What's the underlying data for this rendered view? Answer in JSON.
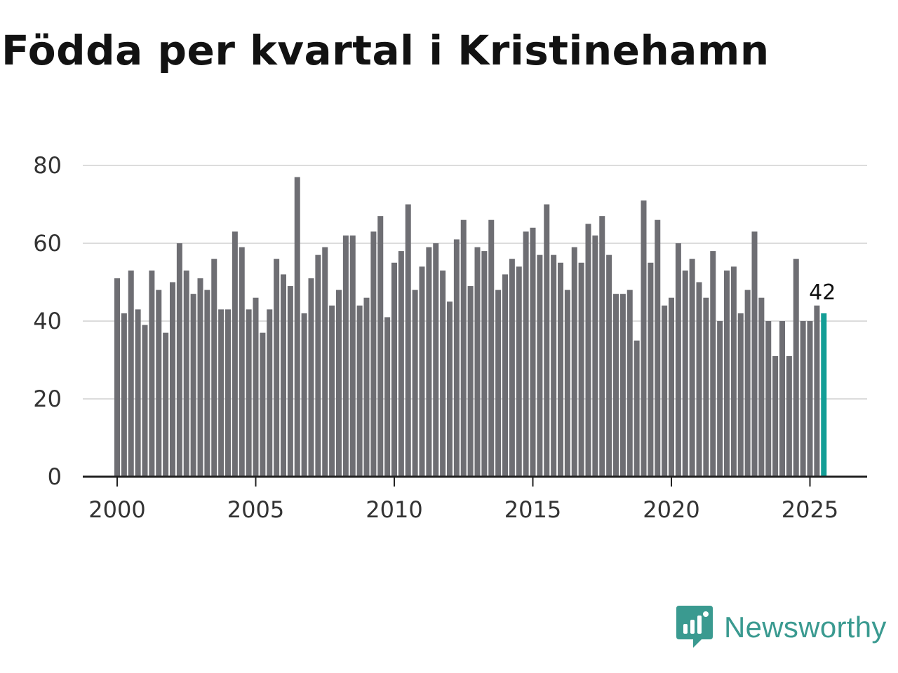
{
  "brand": {
    "name": "Newsworthy",
    "logo_icon": "bar-chart-speech-bubble-icon",
    "color": "#3a9a90"
  },
  "chart_data": {
    "type": "bar",
    "title": "Födda per kvartal i Kristinehamn",
    "xlabel": "",
    "ylabel": "",
    "ylim": [
      0,
      80
    ],
    "yticks": [
      0,
      20,
      40,
      60,
      80
    ],
    "x_start": 2000,
    "x_step_years": 0.25,
    "xticks": [
      2000,
      2005,
      2010,
      2015,
      2020,
      2025
    ],
    "xtick_labels": [
      "2000",
      "2005",
      "2010",
      "2015",
      "2020",
      "2025"
    ],
    "grid": true,
    "bar_color": "#6e6e73",
    "highlight_color": "#139e96",
    "highlight_last": true,
    "last_value_label": "42",
    "values": [
      51,
      42,
      53,
      43,
      39,
      53,
      48,
      37,
      50,
      60,
      53,
      47,
      51,
      48,
      56,
      43,
      43,
      63,
      59,
      43,
      46,
      37,
      43,
      56,
      52,
      49,
      77,
      42,
      51,
      57,
      59,
      44,
      48,
      62,
      62,
      44,
      46,
      63,
      67,
      41,
      55,
      58,
      70,
      48,
      54,
      59,
      60,
      53,
      45,
      61,
      66,
      49,
      59,
      58,
      66,
      48,
      52,
      56,
      54,
      63,
      64,
      57,
      70,
      57,
      55,
      48,
      59,
      55,
      65,
      62,
      67,
      57,
      47,
      47,
      48,
      35,
      71,
      55,
      66,
      44,
      46,
      60,
      53,
      56,
      50,
      46,
      58,
      40,
      53,
      54,
      42,
      48,
      63,
      46,
      40,
      31,
      40,
      31,
      56,
      40,
      40,
      44,
      42
    ]
  }
}
